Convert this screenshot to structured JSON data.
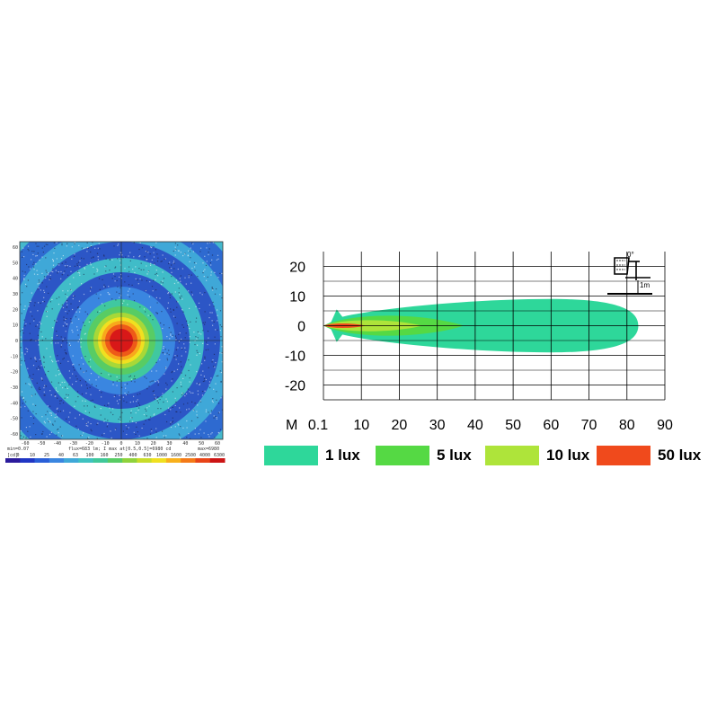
{
  "heatmap": {
    "x_ticks": [
      "-60",
      "-50",
      "-40",
      "-30",
      "-20",
      "-10",
      "0",
      "10",
      "20",
      "30",
      "40",
      "50",
      "60"
    ],
    "y_ticks": [
      "60",
      "50",
      "40",
      "30",
      "20",
      "10",
      "0",
      "-10",
      "-20",
      "-30",
      "-40",
      "-50",
      "-60"
    ],
    "footer_left": "min=0.07",
    "footer_mid": "flux=683 lm; I max at[0.5,0.5]=6980 cd",
    "footer_right": "max=6980",
    "scale_unit": "[cd]",
    "scale_ticks": [
      "0",
      "10",
      "25",
      "40",
      "63",
      "100",
      "160",
      "250",
      "400",
      "630",
      "1000",
      "1600",
      "2500",
      "4000",
      "6300"
    ],
    "scale_colors": [
      "#2b1b9c",
      "#2036c4",
      "#2a5fd8",
      "#3a86e0",
      "#3fa8d8",
      "#3fc2c0",
      "#40c89a",
      "#58cc64",
      "#8fd23c",
      "#c8dc2a",
      "#f0e020",
      "#f8b01c",
      "#f47a18",
      "#e84418",
      "#cc1414"
    ]
  },
  "chart_data": {
    "type": "area",
    "x_prefix": "M",
    "x_ticks": [
      "0.1",
      "10",
      "20",
      "30",
      "40",
      "50",
      "60",
      "70",
      "80",
      "90"
    ],
    "y_ticks": [
      "20",
      "10",
      "0",
      "-10",
      "-20"
    ],
    "xlim": [
      0,
      90
    ],
    "ylim": [
      -25,
      25
    ],
    "grid": true,
    "series": [
      {
        "name": "1 lux",
        "color": "#2ed79a",
        "reach_m": 83,
        "half_width_m": 9
      },
      {
        "name": "5 lux",
        "color": "#55d944",
        "reach_m": 37,
        "half_width_m": 4.5
      },
      {
        "name": "10 lux",
        "color": "#aee43a",
        "reach_m": 26,
        "half_width_m": 2.5
      },
      {
        "name": "50 lux",
        "color": "#f04a1c",
        "reach_m": 11,
        "half_width_m": 1
      }
    ],
    "inset": {
      "angle_label": "0°",
      "distance_label": "1m"
    }
  }
}
